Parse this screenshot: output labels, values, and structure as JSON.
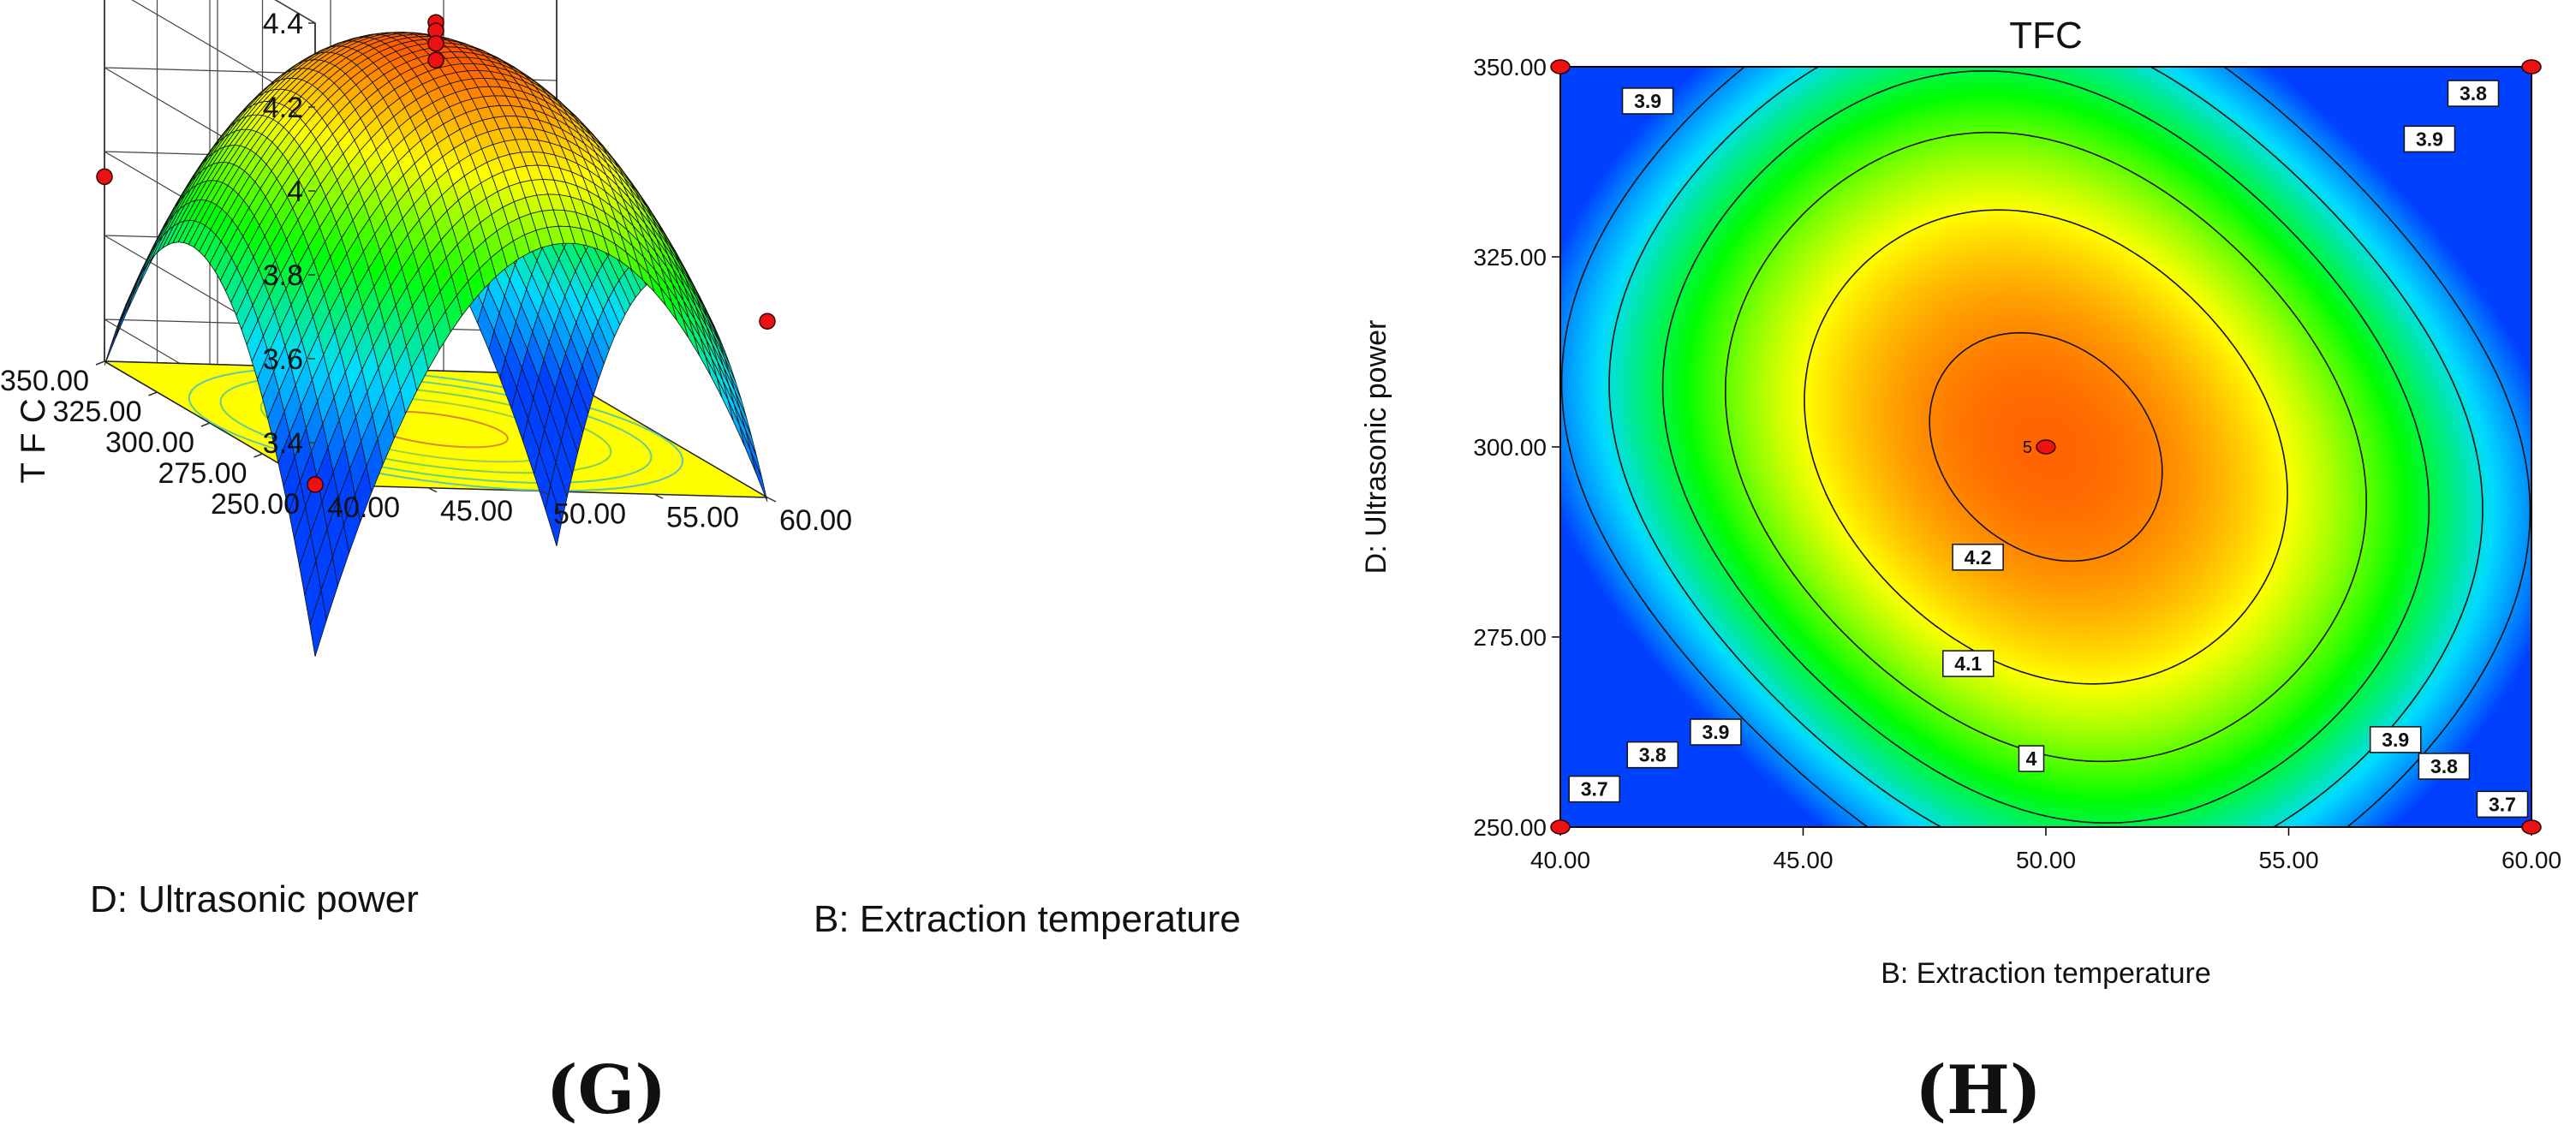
{
  "chart_data": [
    {
      "type": "surface3d",
      "panel_label": "(G)",
      "title": "",
      "zlabel": "T F C",
      "xlabel": "B: Extraction temperature",
      "ylabel": "D: Ultrasonic power",
      "x_ticks": [
        "40.00",
        "45.00",
        "50.00",
        "55.00",
        "60.00"
      ],
      "y_ticks": [
        "250.00",
        "275.00",
        "300.00",
        "325.00",
        "350.00"
      ],
      "z_ticks": [
        "3.4",
        "3.6",
        "3.8",
        "4",
        "4.2",
        "4.4"
      ],
      "xlim": [
        40,
        60
      ],
      "ylim": [
        250,
        350
      ],
      "zlim": [
        3.3,
        4.4
      ],
      "model": {
        "peak_x": 50,
        "peak_y": 300,
        "peak_z": 4.23,
        "x_curv": 0.55,
        "y_curv": 0.35,
        "interaction": 0.2,
        "corner_adjust": -0.24
      },
      "design_points": [
        {
          "x": 50,
          "y": 300,
          "z": 4.27
        },
        {
          "x": 50,
          "y": 300,
          "z": 4.25
        },
        {
          "x": 50,
          "y": 300,
          "z": 4.22
        },
        {
          "x": 50,
          "y": 300,
          "z": 4.18
        },
        {
          "x": 40,
          "y": 350,
          "z": 3.74
        },
        {
          "x": 60,
          "y": 250,
          "z": 3.72
        },
        {
          "x": 40,
          "y": 250,
          "z": 3.3
        }
      ],
      "floor_color": "#ffff00",
      "grid": true
    },
    {
      "type": "contour",
      "panel_label": "(H)",
      "title": "TFC",
      "xlabel": "B: Extraction temperature",
      "ylabel": "D: Ultrasonic power",
      "x_ticks": [
        "40.00",
        "45.00",
        "50.00",
        "55.00",
        "60.00"
      ],
      "y_ticks": [
        "250.00",
        "275.00",
        "300.00",
        "325.00",
        "350.00"
      ],
      "xlim": [
        40,
        60
      ],
      "ylim": [
        250,
        350
      ],
      "levels": [
        3.7,
        3.8,
        3.9,
        4,
        4.1,
        4.2
      ],
      "contour_labels": [
        {
          "text": "3.9",
          "x": 41.8,
          "y": 345.5
        },
        {
          "text": "3.8",
          "x": 58.8,
          "y": 346.5
        },
        {
          "text": "3.9",
          "x": 57.9,
          "y": 340.5
        },
        {
          "text": "4.2",
          "x": 48.6,
          "y": 285.5
        },
        {
          "text": "4.1",
          "x": 48.4,
          "y": 271.5
        },
        {
          "text": "3.9",
          "x": 43.2,
          "y": 262.5
        },
        {
          "text": "3.9",
          "x": 57.2,
          "y": 261.5
        },
        {
          "text": "4",
          "x": 49.7,
          "y": 259
        },
        {
          "text": "3.8",
          "x": 41.9,
          "y": 259.5
        },
        {
          "text": "3.8",
          "x": 58.2,
          "y": 258
        },
        {
          "text": "3.7",
          "x": 40.7,
          "y": 255
        },
        {
          "text": "3.7",
          "x": 59.4,
          "y": 253
        }
      ],
      "center_label": "5",
      "design_points": [
        {
          "x": 50,
          "y": 300
        },
        {
          "x": 40,
          "y": 350
        },
        {
          "x": 60,
          "y": 350
        },
        {
          "x": 40,
          "y": 250
        },
        {
          "x": 60,
          "y": 250
        }
      ]
    }
  ]
}
